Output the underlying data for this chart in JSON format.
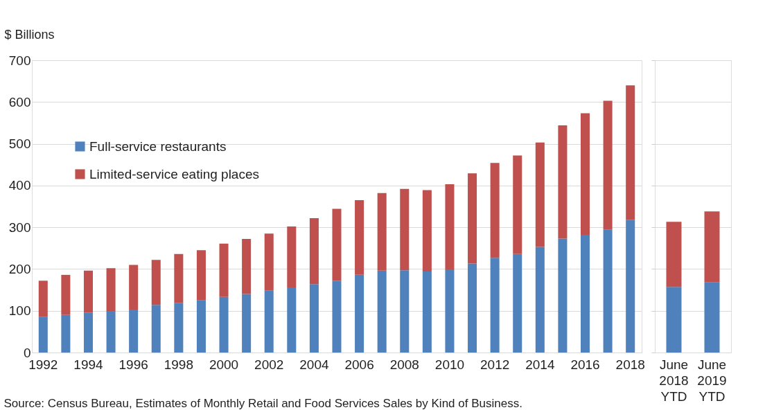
{
  "chart_data": [
    {
      "type": "bar",
      "stacked": true,
      "ylabel": "$ Billions",
      "categories": [
        "1992",
        null,
        "1994",
        null,
        "1996",
        null,
        "1998",
        null,
        "2000",
        null,
        "2002",
        null,
        "2004",
        null,
        "2006",
        null,
        "2008",
        null,
        "2010",
        null,
        "2012",
        null,
        "2014",
        null,
        "2016",
        null,
        "2018"
      ],
      "series": [
        {
          "name": "Full-service restaurants",
          "color": "#4f81bd",
          "values": [
            85,
            90,
            96,
            98,
            103,
            114,
            119,
            125,
            133,
            140,
            148,
            156,
            164,
            172,
            186,
            196,
            197,
            194,
            199,
            213,
            227,
            236,
            253,
            273,
            282,
            294,
            318
          ]
        },
        {
          "name": "Limited-service eating places",
          "color": "#c0504d",
          "values": [
            87,
            96,
            100,
            104,
            107,
            108,
            117,
            120,
            128,
            132,
            137,
            146,
            158,
            172,
            179,
            186,
            195,
            195,
            204,
            216,
            227,
            236,
            250,
            271,
            291,
            309,
            322
          ]
        }
      ],
      "ylim": [
        0,
        700
      ],
      "yticks": [
        0,
        100,
        200,
        300,
        400,
        500,
        600,
        700
      ],
      "grid": "y",
      "legend": "left",
      "annotations": [
        "Source: Census Bureau, Estimates of Monthly Retail and Food Services Sales by Kind of Business."
      ]
    },
    {
      "type": "bar",
      "stacked": true,
      "categories": [
        "June 2018 YTD",
        "June 2019 YTD"
      ],
      "series": [
        {
          "color": "#4f81bd",
          "values": [
            157,
            168
          ]
        },
        {
          "color": "#c0504d",
          "values": [
            156,
            170
          ]
        }
      ],
      "ylim": [
        0,
        700
      ],
      "yticks": [
        0,
        100,
        200,
        300,
        400,
        500,
        600,
        700
      ],
      "grid": "y",
      "tick_labels": "x"
    }
  ]
}
